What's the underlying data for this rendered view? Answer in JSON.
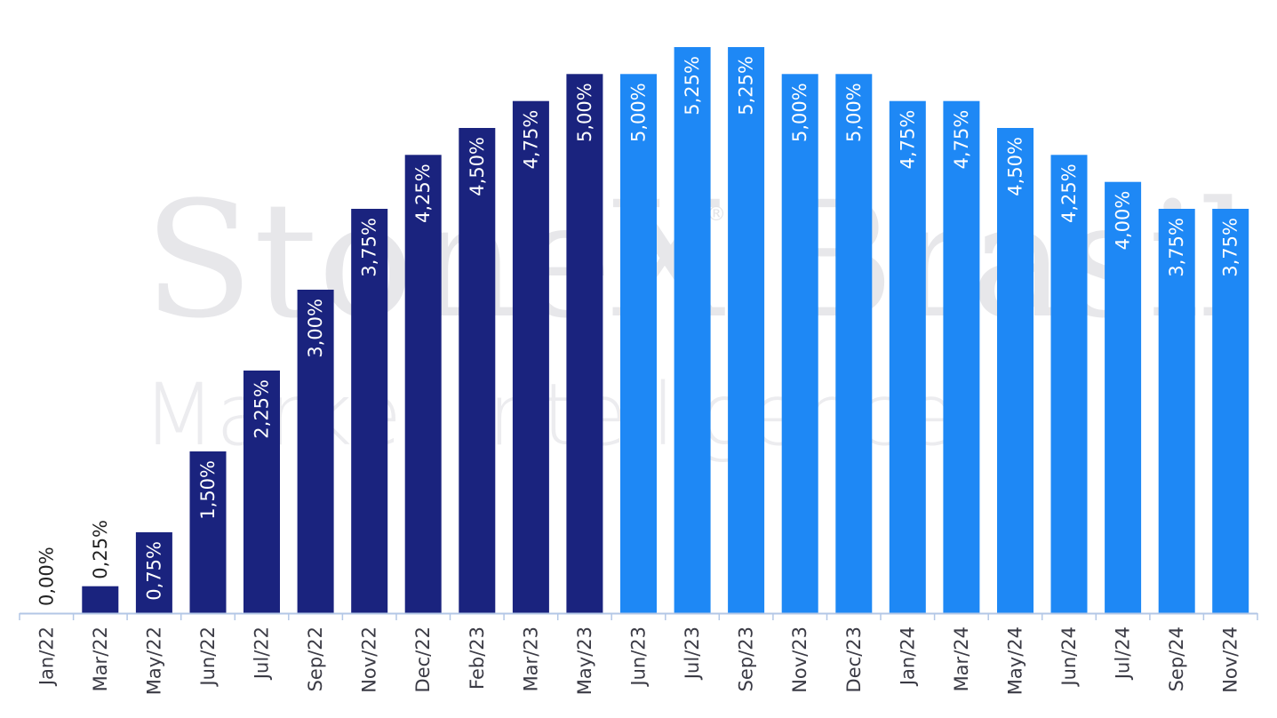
{
  "watermark": {
    "line1": "StoneX Brasil",
    "registered": "®",
    "line2": "Market Intelligence"
  },
  "colors": {
    "past": "#1a237e",
    "future": "#1e88f5",
    "axis": "#b3c7e6",
    "label_inside": "#ffffff",
    "label_outside": "#222222"
  },
  "chart_data": {
    "type": "bar",
    "title": "",
    "xlabel": "",
    "ylabel": "",
    "ylim": [
      0,
      5.25
    ],
    "grid": false,
    "categories": [
      "Jan/22",
      "Mar/22",
      "May/22",
      "Jun/22",
      "Jul/22",
      "Sep/22",
      "Nov/22",
      "Dec/22",
      "Feb/23",
      "Mar/23",
      "May/23",
      "Jun/23",
      "Jul/23",
      "Sep/23",
      "Nov/23",
      "Dec/23",
      "Jan/24",
      "Mar/24",
      "May/24",
      "Jun/24",
      "Jul/24",
      "Sep/24",
      "Nov/24"
    ],
    "values": [
      0.0,
      0.25,
      0.75,
      1.5,
      2.25,
      3.0,
      3.75,
      4.25,
      4.5,
      4.75,
      5.0,
      5.0,
      5.25,
      5.25,
      5.0,
      5.0,
      4.75,
      4.75,
      4.5,
      4.25,
      4.0,
      3.75,
      3.75
    ],
    "labels": [
      "0,00%",
      "0,25%",
      "0,75%",
      "1,50%",
      "2,25%",
      "3,00%",
      "3,75%",
      "4,25%",
      "4,50%",
      "4,75%",
      "5,00%",
      "5,00%",
      "5,25%",
      "5,25%",
      "5,00%",
      "5,00%",
      "4,75%",
      "4,75%",
      "4,50%",
      "4,25%",
      "4,00%",
      "3,75%",
      "3,75%"
    ],
    "bar_groups": [
      "past",
      "past",
      "past",
      "past",
      "past",
      "past",
      "past",
      "past",
      "past",
      "past",
      "past",
      "future",
      "future",
      "future",
      "future",
      "future",
      "future",
      "future",
      "future",
      "future",
      "future",
      "future",
      "future"
    ]
  }
}
